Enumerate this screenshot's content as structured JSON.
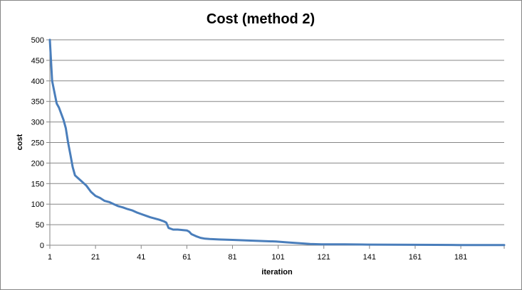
{
  "chart_data": {
    "type": "line",
    "title": "Cost (method 2)",
    "xlabel": "iteration",
    "ylabel": "cost",
    "xlim": [
      1,
      200
    ],
    "ylim": [
      0,
      500
    ],
    "x_ticks": [
      1,
      21,
      41,
      61,
      81,
      101,
      121,
      141,
      161,
      181
    ],
    "y_ticks": [
      0,
      50,
      100,
      150,
      200,
      250,
      300,
      350,
      400,
      450,
      500
    ],
    "grid": "horizontal",
    "legend": "none",
    "line_color": "#4A7EBB",
    "series": [
      {
        "x": [
          1,
          2,
          4,
          5,
          7,
          8,
          9,
          10,
          11,
          12,
          13,
          14,
          15,
          17,
          19,
          21,
          23,
          25,
          27,
          29,
          31,
          33,
          35,
          37,
          39,
          41,
          43,
          45,
          47,
          49,
          51,
          52,
          53,
          55,
          57,
          59,
          61,
          62,
          63,
          65,
          67,
          69,
          71,
          75,
          81,
          90,
          100,
          105,
          110,
          115,
          120,
          130,
          140,
          150,
          160,
          170,
          180,
          190,
          200
        ],
        "y": [
          500,
          400,
          345,
          335,
          305,
          285,
          250,
          220,
          190,
          170,
          165,
          160,
          155,
          145,
          130,
          120,
          115,
          108,
          105,
          100,
          95,
          92,
          88,
          85,
          80,
          76,
          72,
          68,
          65,
          62,
          58,
          55,
          42,
          38,
          38,
          37,
          36,
          33,
          27,
          22,
          18,
          16,
          15,
          14,
          13,
          11,
          9,
          7,
          5,
          3,
          2,
          2,
          1.5,
          1.2,
          1,
          0.8,
          0.6,
          0.5,
          0.3
        ]
      }
    ]
  }
}
